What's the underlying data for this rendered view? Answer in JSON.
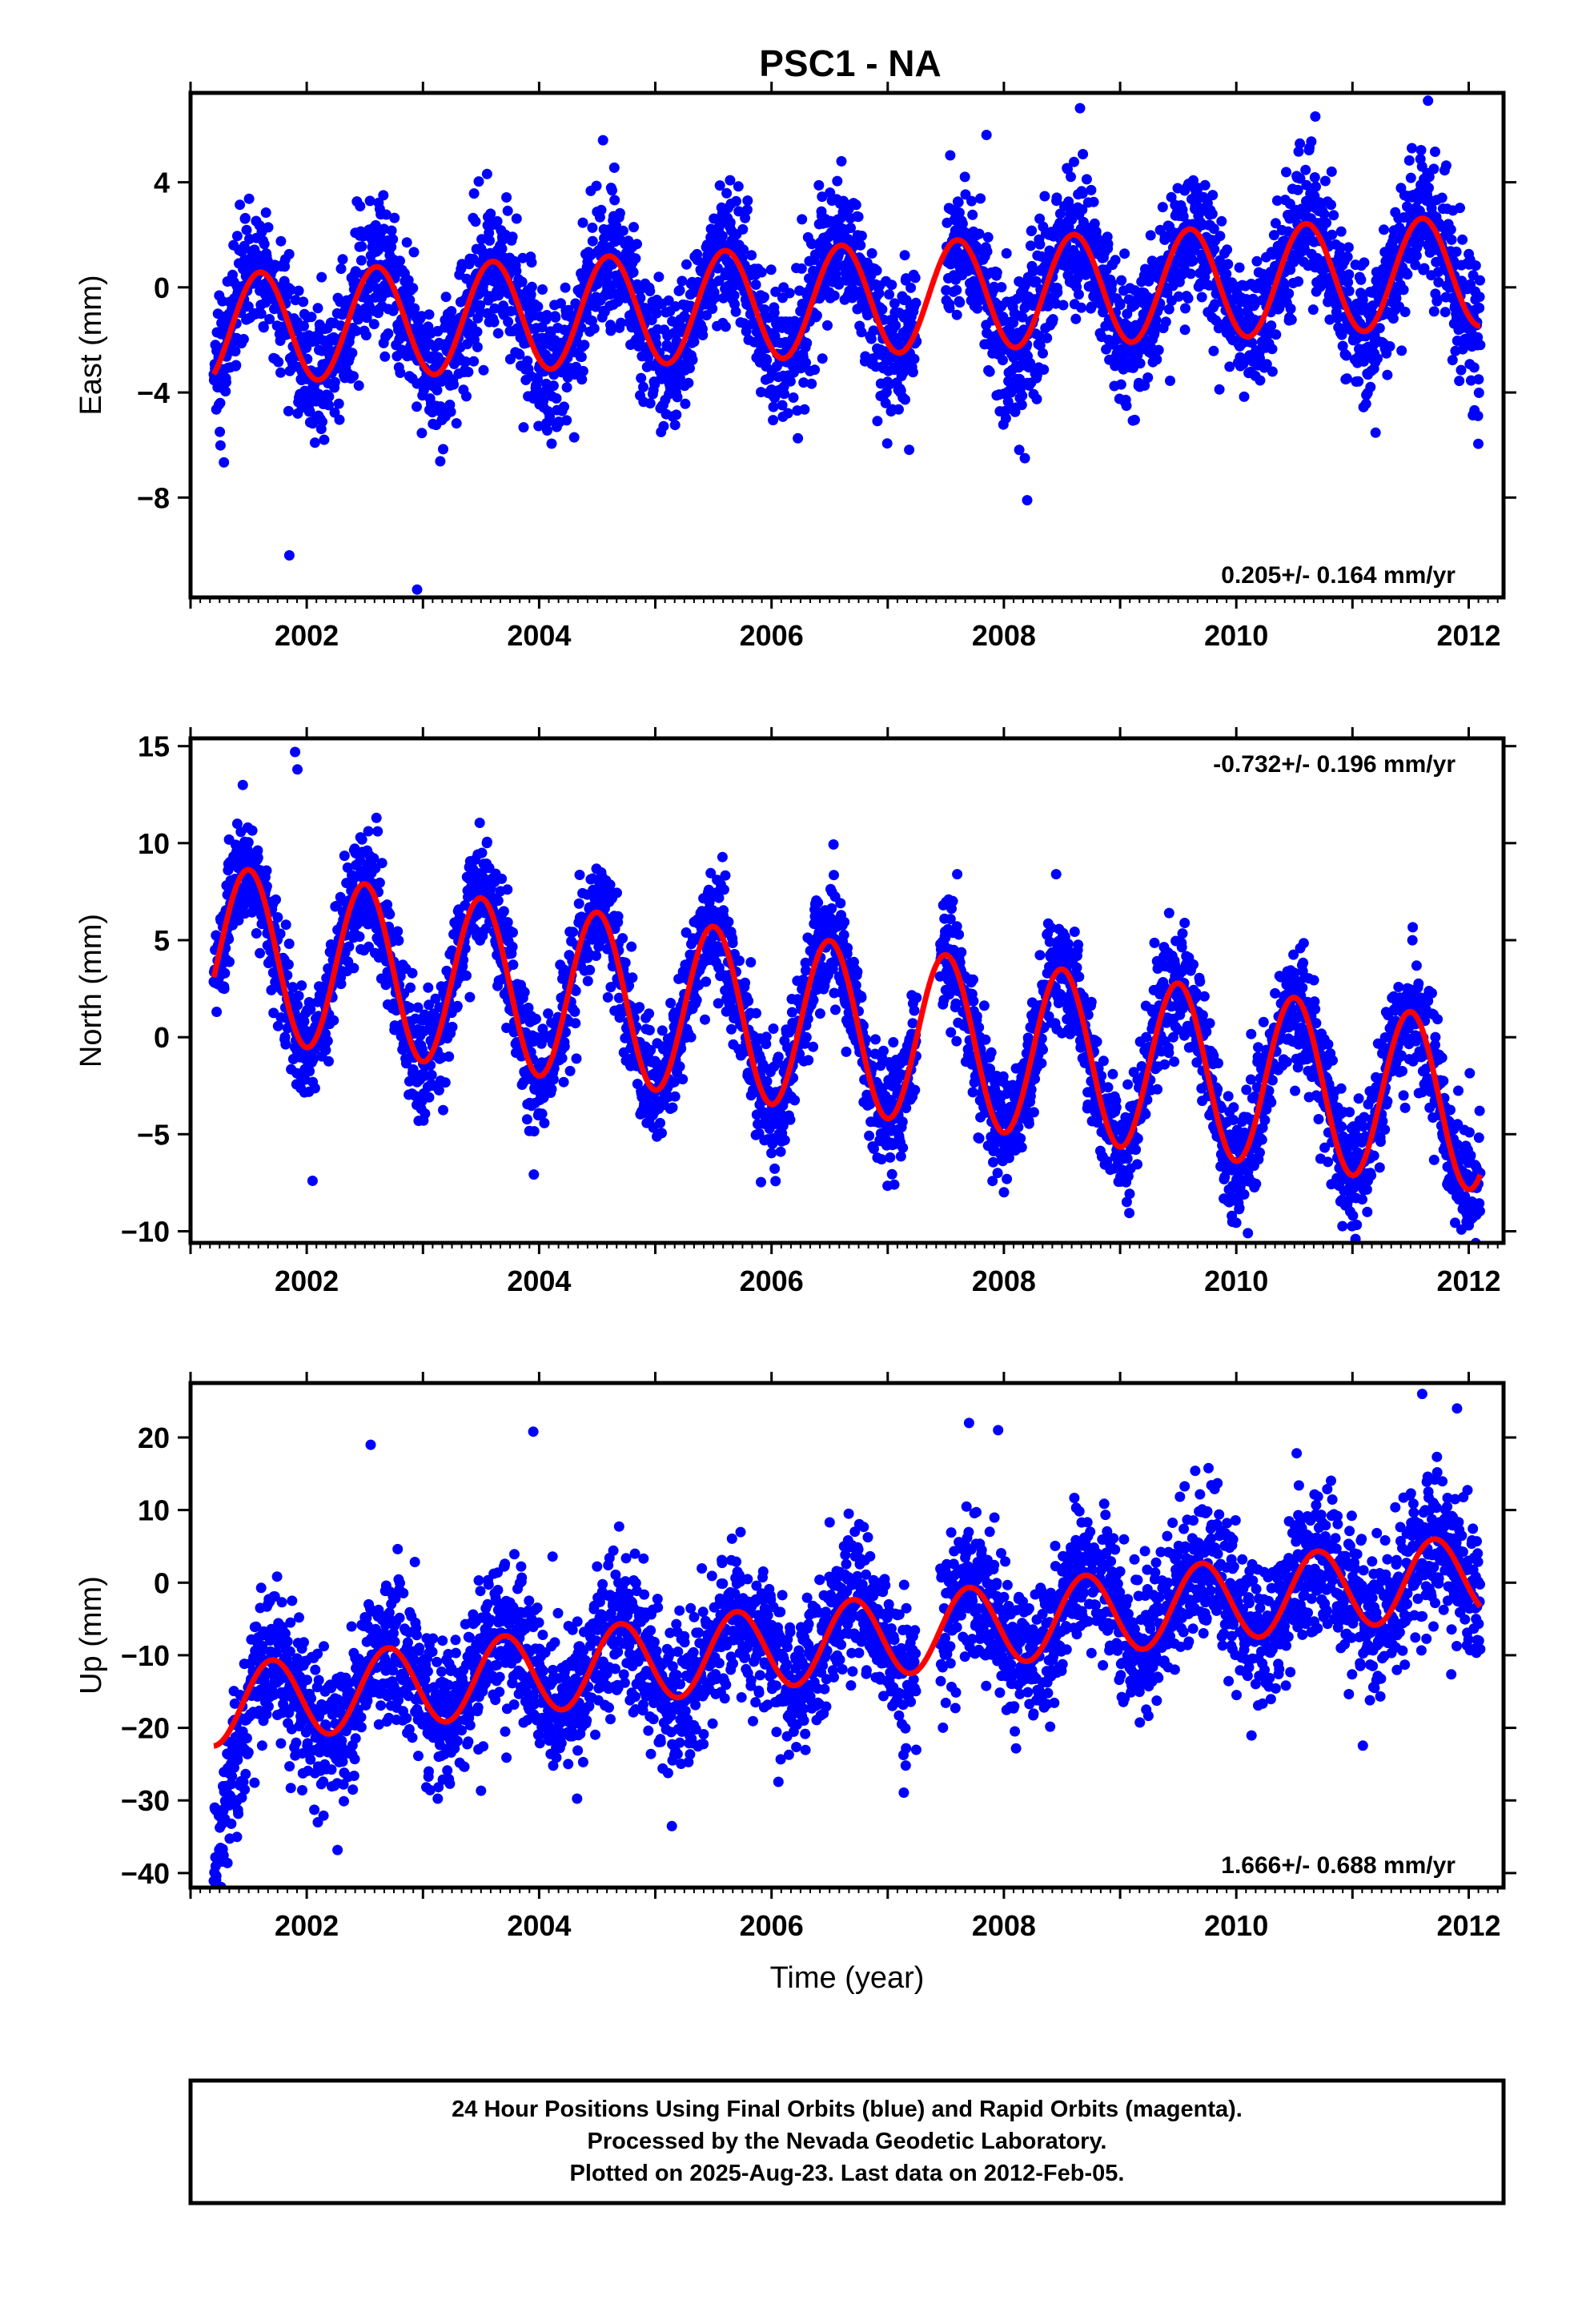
{
  "title": "PSC1 - NA",
  "xlabel": "Time (year)",
  "footer_lines": [
    "24 Hour Positions Using Final Orbits (blue) and Rapid Orbits (magenta).",
    "Processed by the Nevada Geodetic Laboratory.",
    "Plotted on 2025-Aug-23. Last data on 2012-Feb-05."
  ],
  "colors": {
    "final_orbits": "#0000ff",
    "model_fit": "#ff0000",
    "rapid_orbits": "#ff00ff"
  },
  "chart_data": [
    {
      "type": "scatter",
      "ylabel": "East (mm)",
      "rate": "0.205+/- 0.164 mm/yr",
      "rate_position": "bottom-right",
      "xlim": [
        2001.0,
        2012.3
      ],
      "ylim": [
        -11.8,
        7.4
      ],
      "yticks": [
        4,
        0,
        -4,
        -8
      ],
      "yticklabels": [
        "4",
        "0",
        "−4",
        "−8"
      ],
      "xticks": [
        2002,
        2004,
        2006,
        2008,
        2010,
        2012
      ],
      "xticklabels": [
        "2002",
        "2004",
        "2006",
        "2008",
        "2010",
        "2012"
      ],
      "data_start": 2001.2,
      "data_end": 2012.1,
      "model": {
        "offset": -0.5,
        "trend_mm_per_yr": 0.205,
        "annual_amplitude": 2.1,
        "annual_peak_year_fraction": 0.6
      },
      "scatter_sd_mm": 1.3,
      "gaps": [
        [
          2007.25,
          2007.5
        ]
      ],
      "outliers": [
        [
          2001.85,
          -10.2
        ],
        [
          2002.95,
          -11.5
        ],
        [
          2008.2,
          -8.1
        ],
        [
          2008.18,
          -6.5
        ],
        [
          2002.15,
          -5.8
        ],
        [
          2004.55,
          5.6
        ],
        [
          2007.85,
          5.8
        ],
        [
          2011.65,
          7.1
        ],
        [
          2010.68,
          6.5
        ]
      ]
    },
    {
      "type": "scatter",
      "ylabel": "North (mm)",
      "rate": "-0.732+/- 0.196 mm/yr",
      "rate_position": "top-right",
      "xlim": [
        2001.0,
        2012.3
      ],
      "ylim": [
        -10.6,
        15.4
      ],
      "yticks": [
        15,
        10,
        5,
        0,
        -5,
        -10
      ],
      "yticklabels": [
        "15",
        "10",
        "5",
        "0",
        "−5",
        "−10"
      ],
      "xticks": [
        2002,
        2004,
        2006,
        2008,
        2010,
        2012
      ],
      "xticklabels": [
        "2002",
        "2004",
        "2006",
        "2008",
        "2010",
        "2012"
      ],
      "data_start": 2001.2,
      "data_end": 2012.1,
      "model": {
        "offset": 0.5,
        "trend_mm_per_yr": -0.732,
        "annual_amplitude": 4.4,
        "annual_peak_year_fraction": 0.5
      },
      "scatter_sd_mm": 1.5,
      "gaps": [
        [
          2007.25,
          2007.45
        ]
      ],
      "outliers": [
        [
          2001.45,
          13.0
        ],
        [
          2001.9,
          14.7
        ],
        [
          2001.92,
          13.8
        ],
        [
          2002.05,
          -7.4
        ],
        [
          2008.45,
          8.4
        ],
        [
          2010.1,
          -10.1
        ],
        [
          2003.55,
          10.0
        ],
        [
          2002.6,
          11.3
        ]
      ]
    },
    {
      "type": "scatter",
      "ylabel": "Up (mm)",
      "rate": "1.666+/- 0.688 mm/yr",
      "rate_position": "bottom-right",
      "xlim": [
        2001.0,
        2012.3
      ],
      "ylim": [
        -42,
        27.5
      ],
      "yticks": [
        20,
        10,
        0,
        -10,
        -20,
        -30,
        -40
      ],
      "yticklabels": [
        "20",
        "10",
        "0",
        "−10",
        "−20",
        "−30",
        "−40"
      ],
      "xticks": [
        2002,
        2004,
        2006,
        2008,
        2010,
        2012
      ],
      "xticklabels": [
        "2002",
        "2004",
        "2006",
        "2008",
        "2010",
        "2012"
      ],
      "data_start": 2001.2,
      "data_end": 2012.1,
      "model": {
        "offset": -8.0,
        "trend_mm_per_yr": 1.666,
        "annual_amplitude": 5.5,
        "annual_peak_year_fraction": 0.7
      },
      "scatter_sd_mm": 5.0,
      "gaps": [
        [
          2007.25,
          2007.45
        ]
      ],
      "early_transient": {
        "until": 2001.5,
        "values": [
          -38,
          -35,
          -32,
          -29,
          -26,
          -24,
          -22,
          -20
        ]
      },
      "outliers": [
        [
          2001.22,
          -41
        ],
        [
          2003.05,
          -26
        ],
        [
          2003.95,
          20.8
        ],
        [
          2002.55,
          19.0
        ],
        [
          2007.7,
          22.0
        ],
        [
          2007.95,
          21.0
        ],
        [
          2011.6,
          26.0
        ],
        [
          2011.9,
          24.0
        ],
        [
          2011.15,
          -16.2
        ],
        [
          2005.35,
          -20.2
        ]
      ]
    }
  ]
}
